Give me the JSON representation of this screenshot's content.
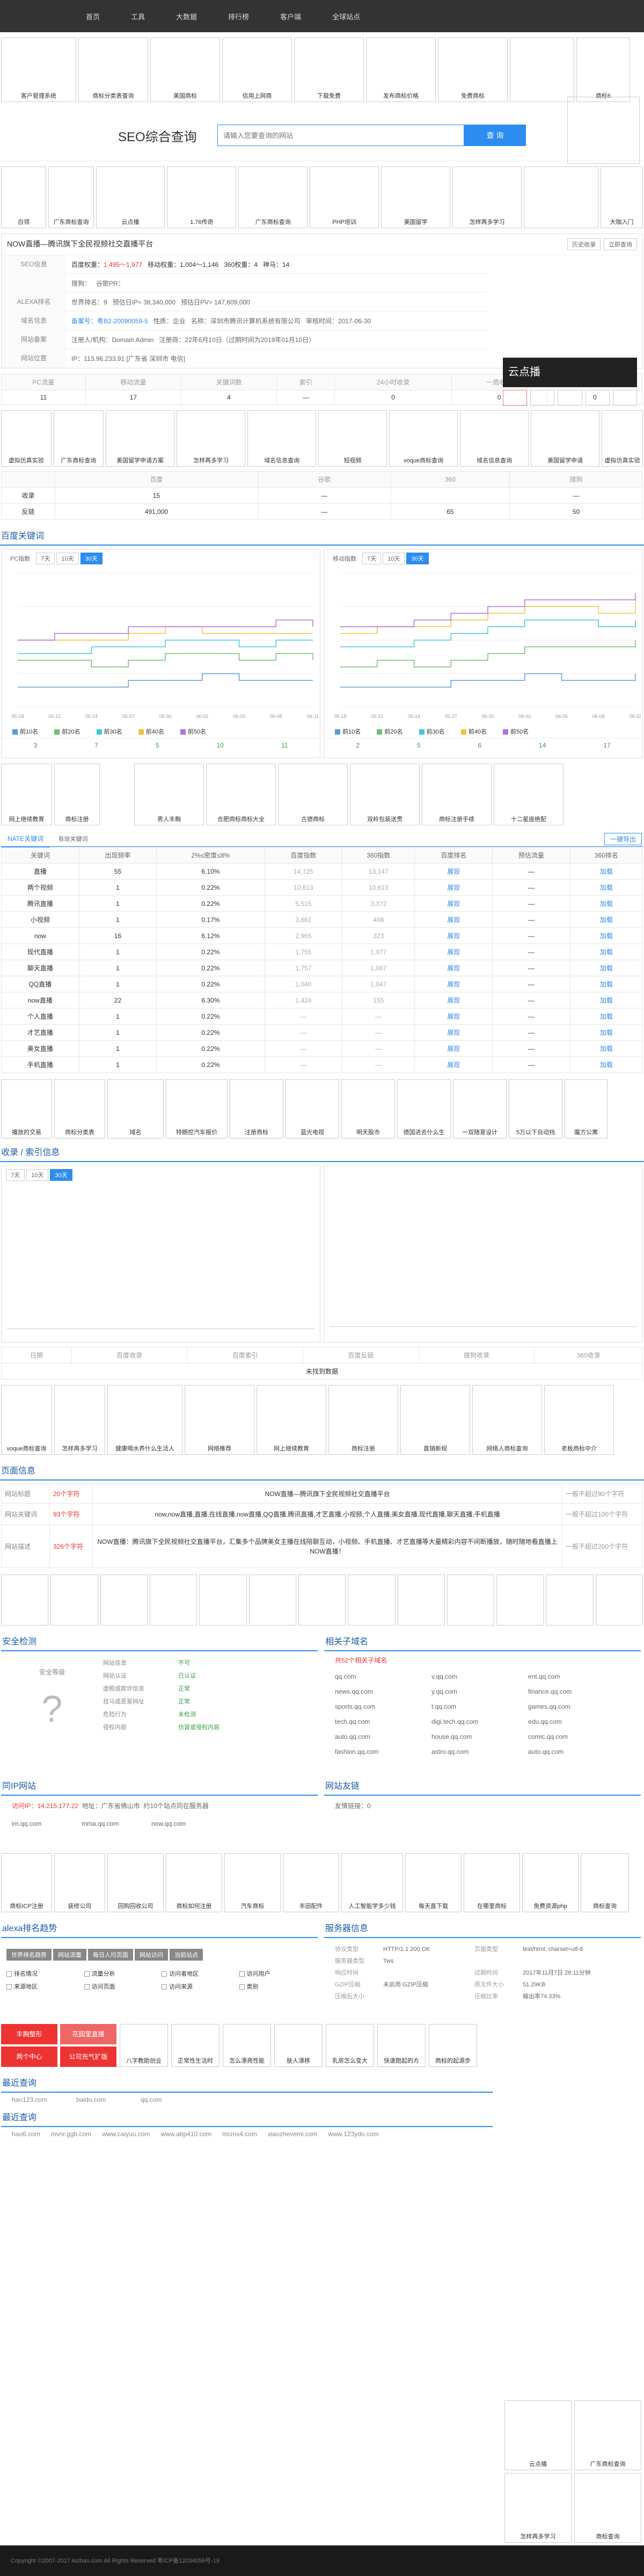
{
  "nav": [
    "首页",
    "工具",
    "大数据",
    "排行榜",
    "客户端",
    "全球站点"
  ],
  "ads_row1": [
    "客户管理系统",
    "商标分类表查询",
    "美国商标",
    "信用上网商",
    "下载免费",
    "发布商标价格",
    "免费商标",
    "",
    "商标6"
  ],
  "search": {
    "title": "SEO综合查询",
    "placeholder": "请输入您要查询的网站",
    "button": "查 询"
  },
  "ads_row2": [
    "白领",
    "广东商标查询",
    "云点播",
    "1.76传奇",
    "广东商标查询",
    "PHP培训",
    "美国留学",
    "怎样再多学习",
    "",
    "大咖入门",
    "商标查询",
    "voque网站"
  ],
  "site": {
    "title": "NOW直播—腾讯旗下全民视频社交直播平台",
    "btn1": "历史收录",
    "btn2": "立即查询"
  },
  "info_rows": [
    {
      "label": "SEO信息",
      "items": [
        "百度权重：",
        "移动权重：",
        "360权重：",
        "神马：",
        "搜狗：",
        "谷歌PR："
      ]
    },
    {
      "label": "ALEXA排名",
      "items": [
        "世界排名：9",
        "预估日IP≈ 38,340,000",
        "预估日PV≈ 147,609,000"
      ]
    },
    {
      "label": "域名信息",
      "items": [
        "备案号：粤B2-20090059-5",
        "性质：企业",
        "名称：深圳市腾讯计算机系统有限公司",
        "审核时间：2017-06-30"
      ]
    },
    {
      "label": "网站备案",
      "items": [
        "注册人/机构：Domain Admin",
        "注册商：22年6月10日（过期时间为2019年01月10日）"
      ]
    },
    {
      "label": "网站位置",
      "items": [
        "IP：113.96.233.91 [广东省 深圳市 电信]"
      ]
    }
  ],
  "seo_stats": {
    "headers": [
      "PC流量",
      "移动流量",
      "关键词数",
      "索引",
      "24小时收录",
      "一周收录",
      "一月收录"
    ],
    "values": [
      "11",
      "17",
      "4",
      "—",
      "0",
      "0",
      "0"
    ]
  },
  "ads_row3": [
    "虚拟仿真实验",
    "广东商标查询",
    "美国留学申请方案",
    "怎样再多学习",
    "域名信息查询",
    "短视频",
    "voque商标查询",
    "域名信息查询",
    "美国留学申请",
    "虚拟仿真实验"
  ],
  "compare": {
    "headers": [
      "",
      "百度",
      "谷歌",
      "360",
      "搜狗"
    ],
    "rows": [
      [
        "收录",
        "15",
        "—",
        "",
        "—"
      ],
      [
        "反链",
        "491,000",
        "—",
        "65",
        "50"
      ]
    ]
  },
  "keyword_title": "百度关键词",
  "chart_left": {
    "title": "PC指数",
    "tabs": [
      "7天",
      "10天",
      "30天"
    ]
  },
  "chart_right": {
    "title": "移动指数",
    "tabs": [
      "7天",
      "10天",
      "30天"
    ]
  },
  "chart_data": [
    {
      "type": "line",
      "x": [
        "05-18",
        "05-21",
        "05-24",
        "05-27",
        "05-30",
        "06-02",
        "06-05",
        "06-08",
        "06-11"
      ],
      "series": [
        {
          "name": "前10名",
          "values": [
            3,
            3,
            3,
            4,
            4,
            5,
            4,
            4,
            4
          ]
        },
        {
          "name": "前20名",
          "values": [
            7,
            7,
            6,
            7,
            8,
            8,
            7,
            8,
            7
          ]
        },
        {
          "name": "前30名",
          "values": [
            8,
            8,
            9,
            9,
            10,
            10,
            9,
            10,
            10
          ]
        },
        {
          "name": "前40名",
          "values": [
            10,
            10,
            10,
            11,
            12,
            11,
            11,
            11,
            11
          ]
        },
        {
          "name": "前50名",
          "values": [
            10,
            11,
            11,
            12,
            12,
            12,
            12,
            13,
            12
          ]
        }
      ]
    },
    {
      "type": "line",
      "x": [
        "05-18",
        "05-21",
        "05-24",
        "05-27",
        "05-30",
        "06-02",
        "06-05",
        "06-08",
        "06-11"
      ],
      "series": [
        {
          "name": "前10名",
          "values": [
            3,
            3,
            3,
            4,
            4,
            5,
            4,
            4,
            5
          ]
        },
        {
          "name": "前20名",
          "values": [
            6,
            7,
            6,
            7,
            8,
            9,
            9,
            9,
            10
          ]
        },
        {
          "name": "前30名",
          "values": [
            9,
            9,
            10,
            11,
            12,
            13,
            13,
            12,
            13
          ]
        },
        {
          "name": "前40名",
          "values": [
            11,
            12,
            12,
            13,
            14,
            15,
            15,
            14,
            16
          ]
        },
        {
          "name": "前50名",
          "values": [
            12,
            12,
            13,
            14,
            15,
            16,
            16,
            16,
            17
          ]
        }
      ]
    }
  ],
  "chart_left_counts": [
    "3",
    "7",
    "5",
    "10",
    "11"
  ],
  "chart_right_counts": [
    "2",
    "5",
    "6",
    "14",
    "17"
  ],
  "ads_row4": [
    "网上继续教育",
    "商标注册",
    "男人丰胸",
    "合肥商标商标大全",
    "古德商标",
    "双岭包装送贯",
    "商标注册手续",
    "十二星座绝配"
  ],
  "kw_table": {
    "tabs": [
      "NATE关键词",
      "有效关键词"
    ],
    "export": "一键导出",
    "headers": [
      "关键词",
      "出现频率",
      "2%≤密度≤8%",
      "百度指数",
      "360指数",
      "百度排名",
      "预估流量",
      "360排名"
    ],
    "rows": [
      [
        "直播",
        "55",
        "6.10%",
        "14,725",
        "13,147",
        "展现",
        "—",
        "加载"
      ],
      [
        "两个视频",
        "1",
        "0.22%",
        "10,613",
        "10,613",
        "展现",
        "—",
        "加载"
      ],
      [
        "腾讯直播",
        "1",
        "0.22%",
        "5,515",
        "3,372",
        "展现",
        "—",
        "加载"
      ],
      [
        "小视频",
        "1",
        "0.17%",
        "3,661",
        "408",
        "展现",
        "—",
        "加载"
      ],
      [
        "now",
        "16",
        "6.12%",
        "2,965",
        "323",
        "展现",
        "—",
        "加载"
      ],
      [
        "现代直播",
        "1",
        "0.22%",
        "1,755",
        "1,977",
        "展现",
        "—",
        "加载"
      ],
      [
        "聊天直播",
        "1",
        "0.22%",
        "1,757",
        "1,067",
        "展现",
        "—",
        "加载"
      ],
      [
        "QQ直播",
        "1",
        "0.22%",
        "1,040",
        "1,047",
        "展现",
        "—",
        "加载"
      ],
      [
        "now直播",
        "22",
        "6.30%",
        "1,424",
        "155",
        "展现",
        "—",
        "加载"
      ],
      [
        "个人直播",
        "1",
        "0.22%",
        "—",
        "—",
        "展现",
        "—",
        "加载"
      ],
      [
        "才艺直播",
        "1",
        "0.22%",
        "—",
        "—",
        "展现",
        "—",
        "加载"
      ],
      [
        "美女直播",
        "1",
        "0.22%",
        "—",
        "—",
        "展现",
        "—",
        "加载"
      ],
      [
        "手机直播",
        "1",
        "0.22%",
        "—",
        "—",
        "展现",
        "—",
        "加载"
      ]
    ]
  },
  "ads_row5": [
    "播放的交易",
    "商标分类表",
    "域名",
    "特朗控汽车报价",
    "注册商标",
    "蓝光电视",
    "明天股市",
    "德国进去什么生",
    "一双随意设计",
    "5万以下自动挡",
    "魔方公寓"
  ],
  "index_title": "收录 / 索引信息",
  "idx_stats": {
    "headers": [
      "日期",
      "百度收录",
      "百度索引",
      "百度反链",
      "搜狗收录",
      "360收录"
    ],
    "note": "未找到数据"
  },
  "ads_row6": [
    "voque商标查询",
    "怎样再多学习",
    "健康喝水养什么生活人",
    "网络推荐",
    "网上继续教育",
    "商标注册",
    "直销新规",
    "网络人商标查询",
    "老板商标中介"
  ],
  "tdk": {
    "title": "页面信息",
    "rows": [
      {
        "label": "网站标题",
        "count": "20个字符",
        "value": "NOW直播—腾讯旗下全民视频社交直播平台",
        "note": "一般不超过80个字符"
      },
      {
        "label": "网站关键词",
        "count": "93个字符",
        "value": "now,now直播,直播,在线直播,now直播,QQ直播,腾讯直播,才艺直播,小视频,个人直播,美女直播,现代直播,聊天直播,手机直播",
        "note": "一般不超过100个字符"
      },
      {
        "label": "网站描述",
        "count": "326个字符",
        "value": "NOW直播：腾讯旗下全民视频社交直播平台，汇集多个品牌美女主播在线陪聊互动，小视频、手机直播、才艺直播等大量精彩内容不间断播放，随时随地看直播上NOW直播！",
        "note": "一般不超过200个字符"
      }
    ]
  },
  "ads_row7": [
    "",
    "",
    "",
    "",
    "",
    "",
    "",
    "",
    "",
    "",
    "",
    "",
    ""
  ],
  "security": {
    "title": "安全检测",
    "grade": "安全等级",
    "items": [
      [
        "网站信息",
        "不可"
      ],
      [
        "网站认证",
        "已认证"
      ],
      [
        "虚假或欺诈信息",
        "正常"
      ],
      [
        "挂马或恶意网址",
        "正常"
      ],
      [
        "危险行为",
        "未检测"
      ],
      [
        "侵权内容",
        "仿冒或侵权内容"
      ]
    ]
  },
  "related": {
    "title": "相关子域名",
    "count": "共52个相关子域名",
    "list": [
      [
        "qq.com",
        "v.qq.com",
        "ent.qq.com"
      ],
      [
        "news.qq.com",
        "y.qq.com",
        "finance.qq.com"
      ],
      [
        "sports.qq.com",
        "t.qq.com",
        "games.qq.com"
      ],
      [
        "tech.qq.com",
        "digi.tech.qq.com",
        "edu.qq.com"
      ],
      [
        "auto.qq.com",
        "house.qq.com",
        "comic.qq.com"
      ],
      [
        "fashion.qq.com",
        "astro.qq.com",
        "auto.qq.com"
      ]
    ]
  },
  "same_ip": {
    "title": "同IP网站",
    "ip": "访问IP：14.215.177.22",
    "loc": "地址：广东省佛山市",
    "note": "约10个站点同在服务器",
    "list": [
      "im.qq.com",
      "mma.qq.com",
      "now.qq.com"
    ]
  },
  "friend": {
    "title": "网站友链",
    "count": "友情链接：0"
  },
  "ads_row8": [
    "商标ICP注册",
    "装修公司",
    "回购回收公司",
    "商标如何注册",
    "汽车商标",
    "丰田配件",
    "人工智能学多少钱",
    "每天直下载",
    "在哪里商标",
    "免费资源php",
    "商标查询"
  ],
  "alexa": {
    "title": "alexa排名趋势",
    "tabs": [
      "世界排名趋势",
      "网站流量",
      "每日人均页面",
      "网站访问",
      "当前站点"
    ],
    "items": [
      "排名情况",
      "流量分析",
      "访问者地区",
      "访问用户",
      "来源地区",
      "访问页面",
      "访问来源",
      "类别"
    ]
  },
  "server": {
    "title": "服务器信息",
    "rows": [
      [
        "协议类型",
        "HTTP/1.1 200 OK",
        "页面类型",
        "text/html; charset=utf-8"
      ],
      [
        "服务器类型",
        "Tws",
        "",
        ""
      ],
      [
        "响应时间",
        "",
        "过期时间",
        "2017年11月7日 28:11分钟"
      ],
      [
        "GZIP压缩",
        "未启用 GZIP压缩",
        "原文件大小",
        "51.29KB"
      ],
      [
        "压缩后大小",
        "",
        "压缩比率",
        "输出率74.33%"
      ]
    ]
  },
  "ads_row9": [
    "丰胸整形",
    "花园里直播",
    "两个中心",
    "公司充气扩版",
    "八字教助创业",
    "正常性生活时",
    "怎么漂亮性能",
    "肤人漂移",
    "乳房怎么变大",
    "快速跑起的方",
    "商标的起源步"
  ],
  "recent": {
    "title": "最近查询",
    "list": [
      "hao123.com",
      "baidu.com",
      "qq.com"
    ]
  },
  "recent2": {
    "title": "最近查询",
    "list": [
      "hao6.com",
      "mvnr.ggb.com",
      "www.caiyuu.com",
      "www.abp410.com",
      "mcms4.com",
      "xiaozhevemi.com",
      "www.123ydo.com"
    ]
  },
  "right_ads": [
    "云点播",
    "广东商标查询",
    "怎样再多学习",
    "商标查询"
  ],
  "footer": "Copyright ©2007-2017 Aizhan.com All Rights Reserved 粤ICP备12034056号-19"
}
